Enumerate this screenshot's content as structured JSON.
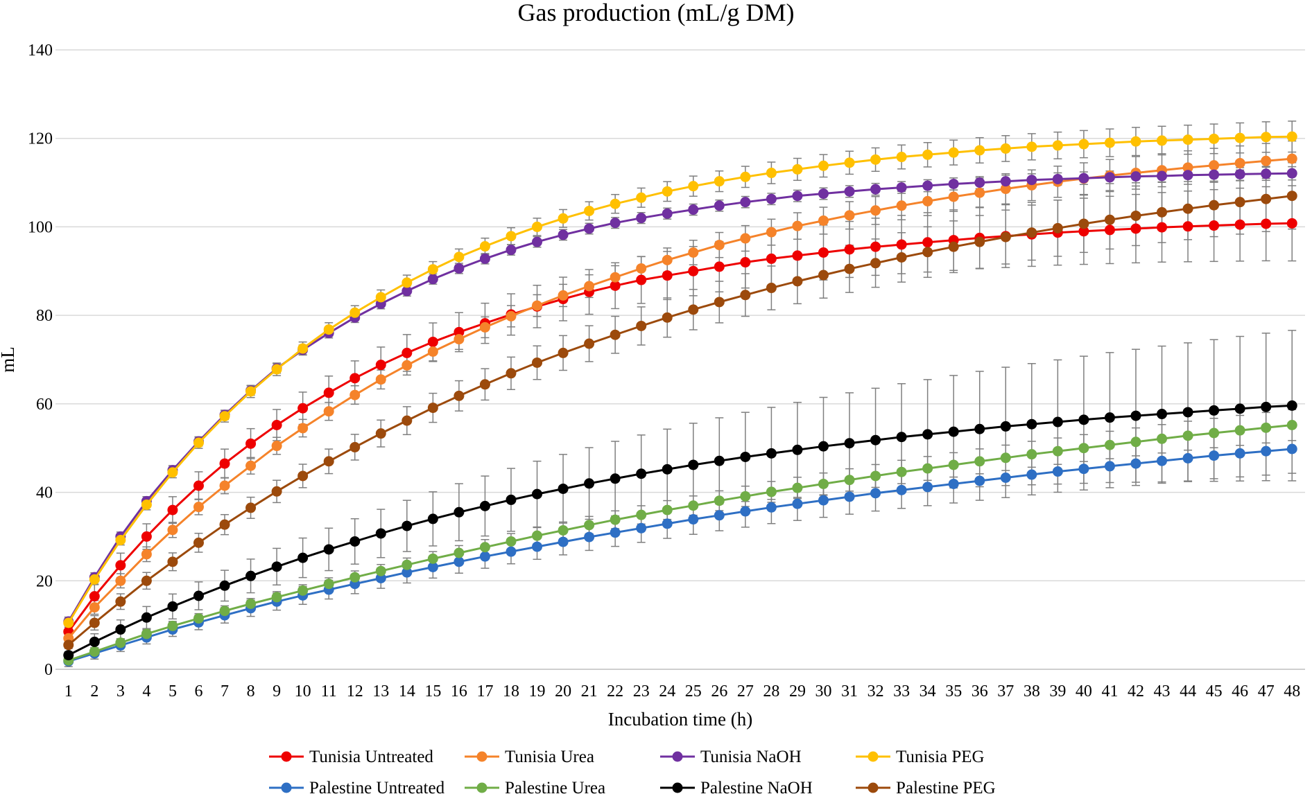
{
  "chart_data": {
    "type": "line",
    "title": "Gas production (mL/g DM)",
    "xlabel": "Incubation time (h)",
    "ylabel": "mL",
    "ylim": [
      0,
      140
    ],
    "yticks": [
      0,
      20,
      40,
      60,
      80,
      100,
      120,
      140
    ],
    "grid": true,
    "legend_position": "bottom",
    "x": [
      1,
      2,
      3,
      4,
      5,
      6,
      7,
      8,
      9,
      10,
      11,
      12,
      13,
      14,
      15,
      16,
      17,
      18,
      19,
      20,
      21,
      22,
      23,
      24,
      25,
      26,
      27,
      28,
      29,
      30,
      31,
      32,
      33,
      34,
      35,
      36,
      37,
      38,
      39,
      40,
      41,
      42,
      43,
      44,
      45,
      46,
      47,
      48
    ],
    "x_tick_labels": [
      "1",
      "2",
      "3",
      "4",
      "5",
      "6",
      "7",
      "8",
      "9",
      "10",
      "11",
      "12",
      "13",
      "14",
      "15",
      "16",
      "17",
      "18",
      "19",
      "20",
      "21",
      "22",
      "23",
      "24",
      "25",
      "26",
      "27",
      "28",
      "29",
      "30",
      "31",
      "32",
      "33",
      "34",
      "35",
      "36",
      "37",
      "38",
      "39",
      "40",
      "41",
      "42",
      "43",
      "44",
      "45",
      "46",
      "47",
      "48"
    ],
    "series": [
      {
        "name": "Tunisia Untreated",
        "color": "#EE0000",
        "err_start": 2.5,
        "err_end": 8.5,
        "values": [
          8.5,
          16.5,
          23.5,
          30,
          36,
          41.5,
          46.5,
          51,
          55.2,
          59,
          62.5,
          65.8,
          68.8,
          71.5,
          74,
          76.2,
          78.2,
          80.2,
          82,
          83.7,
          85.3,
          86.7,
          88,
          89,
          90,
          91,
          92,
          92.8,
          93.5,
          94.2,
          94.9,
          95.5,
          96,
          96.5,
          97,
          97.5,
          97.9,
          98.3,
          98.7,
          99,
          99.3,
          99.6,
          99.9,
          100.1,
          100.3,
          100.5,
          100.7,
          100.8
        ]
      },
      {
        "name": "Tunisia Urea",
        "color": "#F5832A",
        "err_start": 1.5,
        "err_end": 4,
        "values": [
          7,
          14,
          20,
          26,
          31.5,
          36.7,
          41.5,
          46,
          50.5,
          54.5,
          58.3,
          62,
          65.5,
          68.7,
          71.8,
          74.6,
          77.3,
          79.8,
          82.2,
          84.5,
          86.6,
          88.6,
          90.6,
          92.5,
          94.2,
          95.9,
          97.4,
          98.8,
          100.2,
          101.4,
          102.6,
          103.7,
          104.8,
          105.8,
          106.8,
          107.7,
          108.6,
          109.4,
          110.2,
          110.9,
          111.6,
          112.2,
          112.8,
          113.4,
          113.9,
          114.4,
          114.9,
          115.4
        ]
      },
      {
        "name": "Tunisia NaOH",
        "color": "#7030A0",
        "err_start": 1,
        "err_end": 1.5,
        "values": [
          10.8,
          20.8,
          30,
          38,
          45,
          51.5,
          57.5,
          63,
          68,
          72.2,
          76,
          79.5,
          82.6,
          85.5,
          88.2,
          90.6,
          92.8,
          94.8,
          96.6,
          98.2,
          99.6,
          100.9,
          102,
          103,
          103.9,
          104.8,
          105.6,
          106.3,
          107,
          107.5,
          108,
          108.5,
          108.9,
          109.3,
          109.7,
          110,
          110.3,
          110.6,
          110.8,
          111,
          111.2,
          111.4,
          111.5,
          111.7,
          111.8,
          111.9,
          112,
          112.1
        ]
      },
      {
        "name": "Tunisia PEG",
        "color": "#FFC000",
        "err_start": 1,
        "err_end": 3.5,
        "values": [
          10.5,
          20.3,
          29.2,
          37.2,
          44.5,
          51.2,
          57.2,
          62.8,
          67.8,
          72.5,
          76.8,
          80.6,
          84.1,
          87.4,
          90.4,
          93.2,
          95.6,
          97.9,
          100,
          101.9,
          103.6,
          105.2,
          106.6,
          108,
          109.2,
          110.3,
          111.3,
          112.2,
          113,
          113.8,
          114.5,
          115.2,
          115.8,
          116.3,
          116.8,
          117.3,
          117.7,
          118.1,
          118.4,
          118.7,
          119,
          119.3,
          119.5,
          119.7,
          119.9,
          120.1,
          120.3,
          120.4
        ]
      },
      {
        "name": "Palestine Untreated",
        "color": "#2E6FC4",
        "err_start": 1.2,
        "err_end": 5.5,
        "values": [
          1.8,
          3.6,
          5.4,
          7.2,
          9,
          10.6,
          12.2,
          13.8,
          15.3,
          16.7,
          18,
          19.3,
          20.6,
          21.9,
          23.1,
          24.3,
          25.5,
          26.6,
          27.7,
          28.8,
          29.9,
          30.9,
          31.9,
          32.9,
          33.9,
          34.8,
          35.7,
          36.6,
          37.4,
          38.2,
          39,
          39.8,
          40.5,
          41.2,
          41.9,
          42.6,
          43.3,
          44,
          44.7,
          45.3,
          45.9,
          46.5,
          47.1,
          47.7,
          48.3,
          48.8,
          49.3,
          49.8
        ]
      },
      {
        "name": "Palestine Urea",
        "color": "#70AD47",
        "err_start": 0.8,
        "err_end": 3.5,
        "values": [
          2,
          4,
          6,
          8,
          9.8,
          11.5,
          13.2,
          14.8,
          16.3,
          17.8,
          19.3,
          20.8,
          22.2,
          23.6,
          25,
          26.3,
          27.6,
          28.9,
          30.2,
          31.4,
          32.6,
          33.8,
          34.9,
          36,
          37,
          38.1,
          39.1,
          40.1,
          41,
          41.9,
          42.8,
          43.7,
          44.6,
          45.4,
          46.2,
          47,
          47.8,
          48.6,
          49.3,
          50,
          50.7,
          51.4,
          52.1,
          52.8,
          53.4,
          54,
          54.6,
          55.2
        ]
      },
      {
        "name": "Palestine NaOH",
        "color": "#000000",
        "err_start": 1.5,
        "err_end": 17,
        "values": [
          3.2,
          6.2,
          9,
          11.7,
          14.2,
          16.6,
          18.9,
          21.1,
          23.2,
          25.2,
          27.1,
          28.9,
          30.7,
          32.4,
          34,
          35.5,
          36.9,
          38.3,
          39.6,
          40.8,
          42,
          43.1,
          44.2,
          45.2,
          46.2,
          47.1,
          48,
          48.8,
          49.6,
          50.4,
          51.1,
          51.8,
          52.5,
          53.1,
          53.7,
          54.3,
          54.9,
          55.4,
          55.9,
          56.4,
          56.9,
          57.3,
          57.7,
          58.1,
          58.5,
          58.9,
          59.3,
          59.6
        ]
      },
      {
        "name": "Palestine PEG",
        "color": "#9C4A0C",
        "err_start": 1.5,
        "err_end": 7.5,
        "values": [
          5.5,
          10.5,
          15.3,
          20,
          24.3,
          28.6,
          32.7,
          36.5,
          40.2,
          43.7,
          47,
          50.2,
          53.3,
          56.2,
          59.1,
          61.8,
          64.4,
          66.9,
          69.3,
          71.5,
          73.6,
          75.6,
          77.6,
          79.5,
          81.3,
          83,
          84.6,
          86.2,
          87.7,
          89.1,
          90.5,
          91.8,
          93.1,
          94.3,
          95.5,
          96.6,
          97.7,
          98.7,
          99.7,
          100.7,
          101.6,
          102.5,
          103.3,
          104.1,
          104.9,
          105.6,
          106.3,
          107
        ]
      }
    ]
  }
}
